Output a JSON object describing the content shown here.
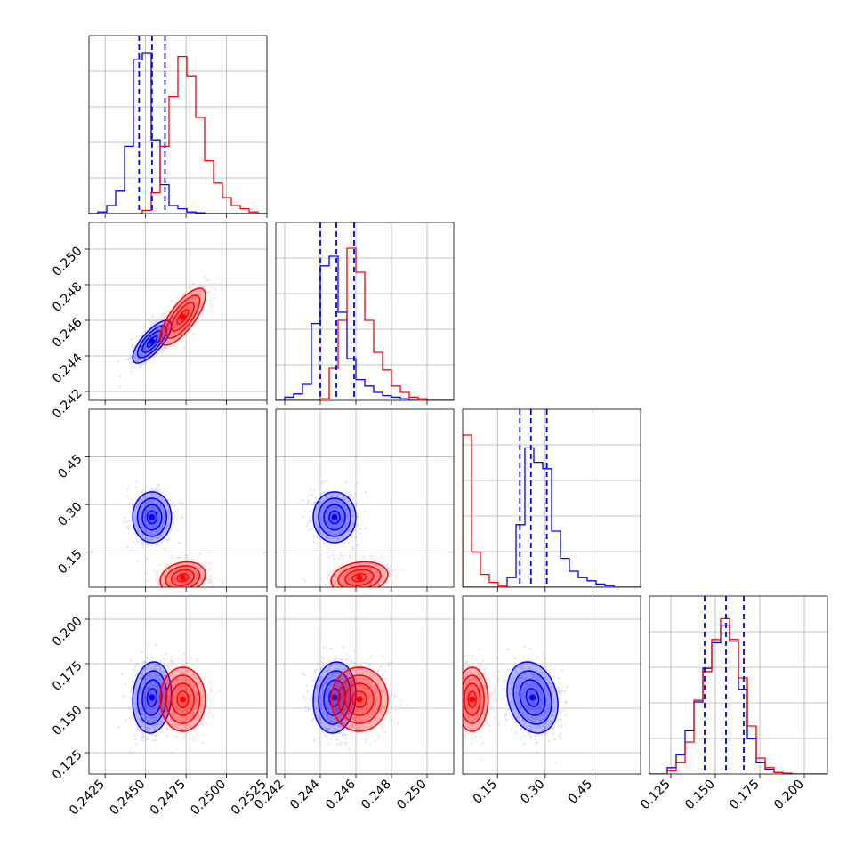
{
  "chart_data": {
    "type": "corner",
    "grid": true,
    "colors": {
      "series_a": "#0000ff",
      "series_b": "#ff0000"
    },
    "parameters": [
      {
        "index": 0,
        "range": [
          0.2415,
          0.2525
        ],
        "ticks": [
          0.2425,
          0.245,
          0.2475,
          0.25,
          0.2525
        ],
        "tick_labels": [
          "0.2425",
          "0.2450",
          "0.2475",
          "0.2500",
          "0.2525"
        ]
      },
      {
        "index": 1,
        "range": [
          0.2415,
          0.2515
        ],
        "ticks": [
          0.242,
          0.244,
          0.246,
          0.248,
          0.25
        ],
        "tick_labels": [
          "0.242",
          "0.244",
          "0.246",
          "0.248",
          "0.250"
        ]
      },
      {
        "index": 2,
        "range": [
          0.04,
          0.6
        ],
        "ticks": [
          0.15,
          0.3,
          0.45
        ],
        "tick_labels": [
          "0.15",
          "0.30",
          "0.45"
        ]
      },
      {
        "index": 3,
        "range": [
          0.113,
          0.213
        ],
        "ticks": [
          0.125,
          0.15,
          0.175,
          0.2
        ],
        "tick_labels": [
          "0.125",
          "0.150",
          "0.175",
          "0.200"
        ]
      }
    ],
    "series": [
      {
        "id": "series_a",
        "color": "#0000ff",
        "mean": [
          0.2454,
          0.2448,
          0.26,
          0.156
        ],
        "sd": [
          0.0006,
          0.0006,
          0.04,
          0.01
        ],
        "quantiles": [
          [
            0.2446,
            0.2454,
            0.2462
          ],
          [
            0.244,
            0.2449,
            0.2459
          ],
          [
            0.22,
            0.255,
            0.305
          ],
          [
            0.144,
            0.156,
            0.166
          ]
        ],
        "histograms": [
          {
            "bin_edges": [
              0.2415,
              0.24205,
              0.2426,
              0.24315,
              0.2437,
              0.24425,
              0.2448,
              0.24535,
              0.2459,
              0.24645,
              0.247,
              0.24755,
              0.2481,
              0.24865,
              0.2492,
              0.24975,
              0.2503,
              0.25085,
              0.2514,
              0.25195,
              0.2525
            ],
            "counts": [
              0,
              0.01,
              0.05,
              0.14,
              0.42,
              0.96,
              1.0,
              0.46,
              0.18,
              0.05,
              0.03,
              0.01,
              0.005,
              0,
              0,
              0,
              0,
              0,
              0,
              0
            ]
          },
          {
            "bin_edges": [
              0.2415,
              0.242,
              0.2425,
              0.243,
              0.2435,
              0.244,
              0.2445,
              0.245,
              0.2455,
              0.246,
              0.2465,
              0.247,
              0.2475,
              0.248,
              0.2485,
              0.249,
              0.2495,
              0.25,
              0.2505,
              0.251,
              0.2515
            ],
            "counts": [
              0,
              0.02,
              0.04,
              0.1,
              0.48,
              0.84,
              0.9,
              0.55,
              0.26,
              0.13,
              0.09,
              0.05,
              0.03,
              0.02,
              0.01,
              0,
              0,
              0,
              0,
              0
            ]
          },
          {
            "bin_edges": [
              0.04,
              0.068,
              0.096,
              0.124,
              0.152,
              0.18,
              0.208,
              0.236,
              0.264,
              0.292,
              0.32,
              0.348,
              0.376,
              0.404,
              0.432,
              0.46,
              0.488,
              0.516,
              0.544,
              0.572,
              0.6
            ],
            "counts": [
              0,
              0,
              0,
              0,
              0,
              0.06,
              0.39,
              0.87,
              0.78,
              0.74,
              0.35,
              0.18,
              0.1,
              0.06,
              0.04,
              0.02,
              0.01,
              0,
              0,
              0
            ]
          },
          {
            "bin_edges": [
              0.113,
              0.118,
              0.123,
              0.128,
              0.133,
              0.138,
              0.143,
              0.148,
              0.153,
              0.158,
              0.163,
              0.168,
              0.173,
              0.178,
              0.183,
              0.188,
              0.193,
              0.198,
              0.203,
              0.208,
              0.213
            ],
            "counts": [
              0,
              0,
              0.04,
              0.12,
              0.27,
              0.45,
              0.66,
              0.82,
              0.93,
              0.83,
              0.53,
              0.22,
              0.07,
              0.03,
              0.01,
              0.005,
              0,
              0,
              0,
              0
            ]
          }
        ]
      },
      {
        "id": "series_b",
        "color": "#ff0000",
        "mean": [
          0.2473,
          0.2462,
          0.07,
          0.155
        ],
        "sd": [
          0.0007,
          0.0008,
          0.025,
          0.009
        ],
        "histograms": [
          {
            "bin_edges": [
              0.2415,
              0.24205,
              0.2426,
              0.24315,
              0.2437,
              0.24425,
              0.2448,
              0.24535,
              0.2459,
              0.24645,
              0.247,
              0.24755,
              0.2481,
              0.24865,
              0.2492,
              0.24975,
              0.2503,
              0.25085,
              0.2514,
              0.25195,
              0.2525
            ],
            "counts": [
              0,
              0,
              0,
              0,
              0,
              0,
              0.02,
              0.13,
              0.42,
              0.73,
              0.98,
              0.86,
              0.6,
              0.33,
              0.19,
              0.1,
              0.05,
              0.03,
              0.01,
              0
            ]
          },
          {
            "bin_edges": [
              0.2415,
              0.242,
              0.2425,
              0.243,
              0.2435,
              0.244,
              0.2445,
              0.245,
              0.2455,
              0.246,
              0.2465,
              0.247,
              0.2475,
              0.248,
              0.2485,
              0.249,
              0.2495,
              0.25,
              0.2505,
              0.251,
              0.2515
            ],
            "counts": [
              0,
              0,
              0,
              0,
              0,
              0.01,
              0.2,
              0.5,
              0.95,
              0.8,
              0.5,
              0.3,
              0.19,
              0.09,
              0.05,
              0.02,
              0.01,
              0,
              0,
              0
            ]
          },
          {
            "bin_edges": [
              0.04,
              0.068,
              0.096,
              0.124,
              0.152,
              0.18,
              0.208,
              0.236,
              0.264,
              0.292,
              0.32,
              0.348,
              0.376,
              0.404,
              0.432,
              0.46,
              0.488,
              0.516,
              0.544,
              0.572,
              0.6
            ],
            "counts": [
              0.95,
              0.22,
              0.08,
              0.03,
              0.01,
              0,
              0,
              0,
              0,
              0,
              0,
              0,
              0,
              0,
              0,
              0,
              0,
              0,
              0,
              0
            ]
          },
          {
            "bin_edges": [
              0.113,
              0.118,
              0.123,
              0.128,
              0.133,
              0.138,
              0.143,
              0.148,
              0.153,
              0.158,
              0.163,
              0.168,
              0.173,
              0.178,
              0.183,
              0.188,
              0.193,
              0.198,
              0.203,
              0.208,
              0.213
            ],
            "counts": [
              0,
              0,
              0.02,
              0.07,
              0.2,
              0.46,
              0.64,
              0.84,
              0.97,
              0.84,
              0.6,
              0.3,
              0.1,
              0.04,
              0.01,
              0.005,
              0,
              0,
              0,
              0
            ]
          }
        ]
      }
    ],
    "pairs": [
      {
        "row": 1,
        "col": 0,
        "rho": {
          "series_a": 0.75,
          "series_b": 0.75
        }
      },
      {
        "row": 2,
        "col": 0,
        "rho": {
          "series_a": 0.0,
          "series_b": 0.2
        }
      },
      {
        "row": 2,
        "col": 1,
        "rho": {
          "series_a": 0.0,
          "series_b": 0.2
        }
      },
      {
        "row": 3,
        "col": 0,
        "rho": {
          "series_a": 0.1,
          "series_b": 0.0
        }
      },
      {
        "row": 3,
        "col": 1,
        "rho": {
          "series_a": 0.1,
          "series_b": 0.0
        }
      },
      {
        "row": 3,
        "col": 2,
        "rho": {
          "series_a": -0.2,
          "series_b": 0.0
        }
      }
    ],
    "contour_levels_sigma": [
      0.5,
      1.0,
      1.5,
      2.0
    ]
  }
}
